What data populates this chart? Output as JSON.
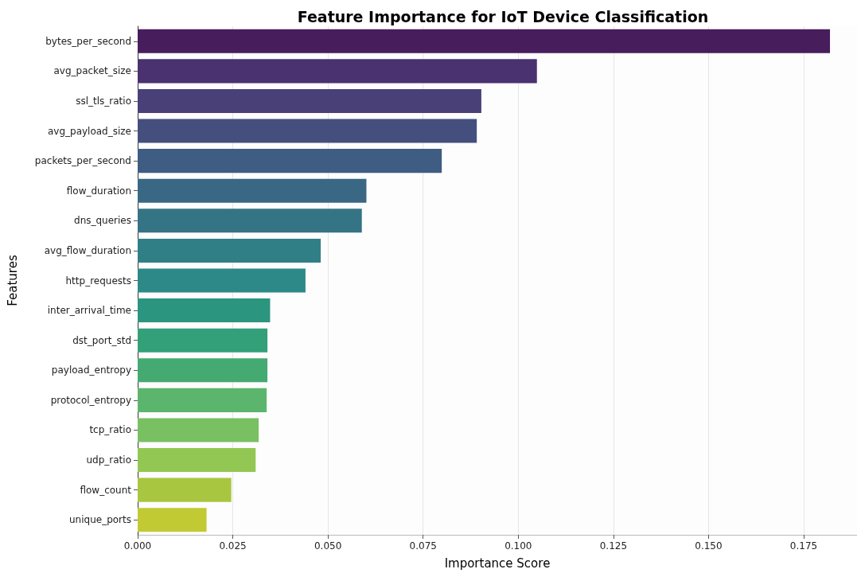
{
  "chart_data": {
    "type": "bar",
    "orientation": "horizontal",
    "title": "Feature Importance for IoT Device Classification",
    "xlabel": "Importance Score",
    "ylabel": "Features",
    "categories": [
      "bytes_per_second",
      "avg_packet_size",
      "ssl_tls_ratio",
      "avg_payload_size",
      "packets_per_second",
      "flow_duration",
      "dns_queries",
      "avg_flow_duration",
      "http_requests",
      "inter_arrival_time",
      "dst_port_std",
      "payload_entropy",
      "protocol_entropy",
      "tcp_ratio",
      "udp_ratio",
      "flow_count",
      "unique_ports"
    ],
    "values": [
      0.1819,
      0.1049,
      0.0903,
      0.0891,
      0.0799,
      0.0601,
      0.0589,
      0.0481,
      0.0441,
      0.0348,
      0.0341,
      0.0341,
      0.0339,
      0.0318,
      0.031,
      0.0246,
      0.0181
    ],
    "colors": [
      "#481d5c",
      "#4a3170",
      "#4a4078",
      "#454f7e",
      "#3f5d82",
      "#3a6884",
      "#357485",
      "#317f86",
      "#2d8987",
      "#2b9580",
      "#33a07a",
      "#45aa72",
      "#5cb56d",
      "#79c063",
      "#93c753",
      "#a9c640",
      "#c2ca33"
    ],
    "xlim": [
      0,
      0.189
    ],
    "xticks": [
      {
        "value": 0,
        "label": "0.000"
      },
      {
        "value": 0.025,
        "label": "0.025"
      },
      {
        "value": 0.05,
        "label": "0.050"
      },
      {
        "value": 0.075,
        "label": "0.075"
      },
      {
        "value": 0.1,
        "label": "0.100"
      },
      {
        "value": 0.125,
        "label": "0.125"
      },
      {
        "value": 0.15,
        "label": "0.150"
      },
      {
        "value": 0.175,
        "label": "0.175"
      }
    ],
    "grid": "x"
  }
}
